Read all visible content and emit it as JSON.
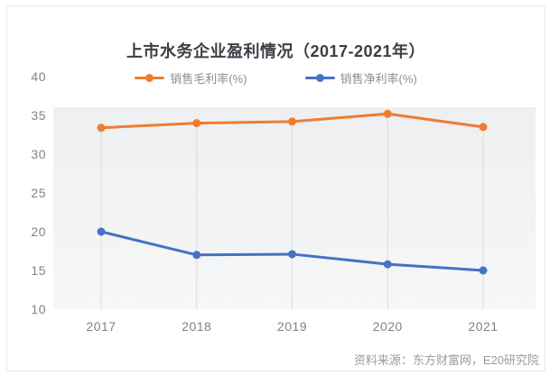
{
  "title": "上市水务企业盈利情况（2017-2021年）",
  "source": "资料来源：东方财富网，E20研究院",
  "chart_data": {
    "type": "line",
    "categories": [
      "2017",
      "2018",
      "2019",
      "2020",
      "2021"
    ],
    "series": [
      {
        "name": "销售毛利率(%)",
        "color": "#ED7D31",
        "values": [
          33.4,
          34.0,
          34.2,
          35.2,
          33.5
        ]
      },
      {
        "name": "销售净利率(%)",
        "color": "#4472C4",
        "values": [
          20.0,
          17.0,
          17.1,
          15.8,
          15.0
        ]
      }
    ],
    "ylim": [
      10,
      40
    ],
    "yticks": [
      40,
      35,
      30,
      25,
      20,
      15,
      10
    ],
    "legend_position": "top",
    "grid": "vertical-drop-lines",
    "plot_background": "light-gray-gradient",
    "drop_line_color": "#dadcde",
    "plot_bg_top_color": "#edeff1",
    "plot_bg_bottom_color": "#f6f7f7",
    "axis_text_color": "#7d828a"
  }
}
